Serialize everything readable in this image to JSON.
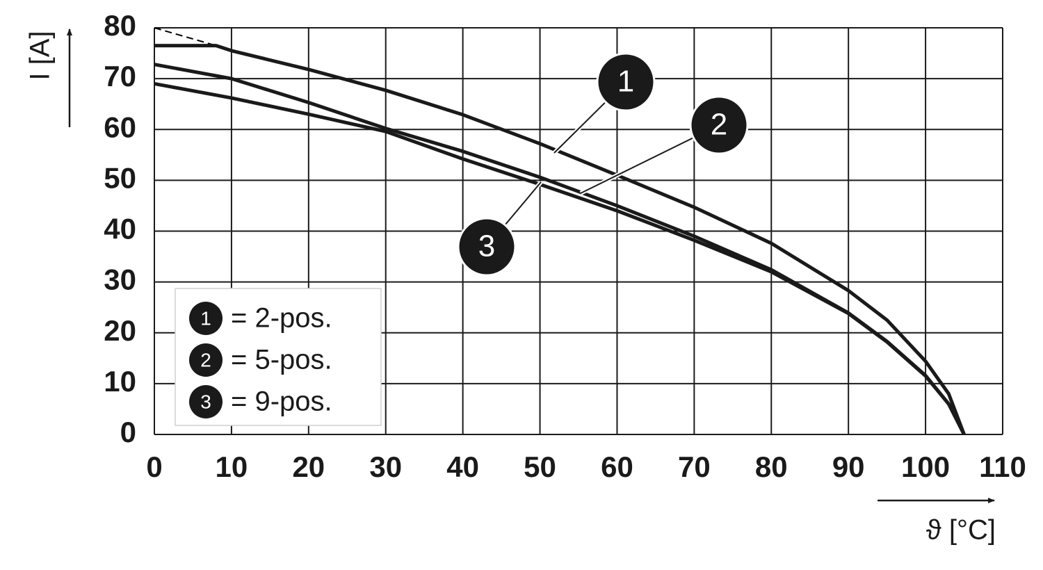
{
  "chart_data": {
    "type": "line",
    "y_label": "I [A]",
    "x_label": "ϑ [°C]",
    "xlim": [
      0,
      110
    ],
    "xticks": [
      0,
      10,
      20,
      30,
      40,
      50,
      60,
      70,
      80,
      90,
      100,
      110
    ],
    "ylim": [
      0,
      80
    ],
    "yticks": [
      0,
      10,
      20,
      30,
      40,
      50,
      60,
      70,
      80
    ],
    "grid": true,
    "legend": "lower left",
    "dashed_line": {
      "x": [
        0,
        8
      ],
      "values": [
        80,
        76.5
      ],
      "color": "#000000"
    },
    "series": [
      {
        "name": "= 2-pos.",
        "marker": "1",
        "color": "#1a1a1a",
        "x": [
          0,
          8,
          10,
          20,
          30,
          40,
          50,
          60,
          70,
          80,
          90,
          95,
          100,
          103,
          105
        ],
        "values": [
          76.5,
          76.5,
          75.5,
          71.8,
          67.7,
          62.9,
          57.2,
          51,
          44.7,
          37.6,
          28.3,
          22.5,
          14.4,
          8,
          0
        ]
      },
      {
        "name": "= 5-pos.",
        "marker": "2",
        "color": "#1a1a1a",
        "x": [
          0,
          10,
          20,
          30,
          40,
          50,
          60,
          70,
          80,
          90,
          95,
          100,
          103,
          105
        ],
        "values": [
          72.8,
          70,
          65.3,
          60.2,
          55.7,
          50.6,
          45,
          39,
          32.4,
          23.9,
          18.3,
          11.6,
          6,
          0
        ]
      },
      {
        "name": "= 9-pos.",
        "marker": "3",
        "color": "#1a1a1a",
        "x": [
          0,
          10,
          20,
          30,
          40,
          50,
          60,
          70,
          80,
          90,
          95,
          100,
          103,
          105
        ],
        "values": [
          69,
          66.2,
          63,
          59.6,
          54.2,
          49.2,
          44,
          38.2,
          32,
          23.8,
          18.2,
          11.5,
          6,
          0
        ]
      }
    ]
  }
}
